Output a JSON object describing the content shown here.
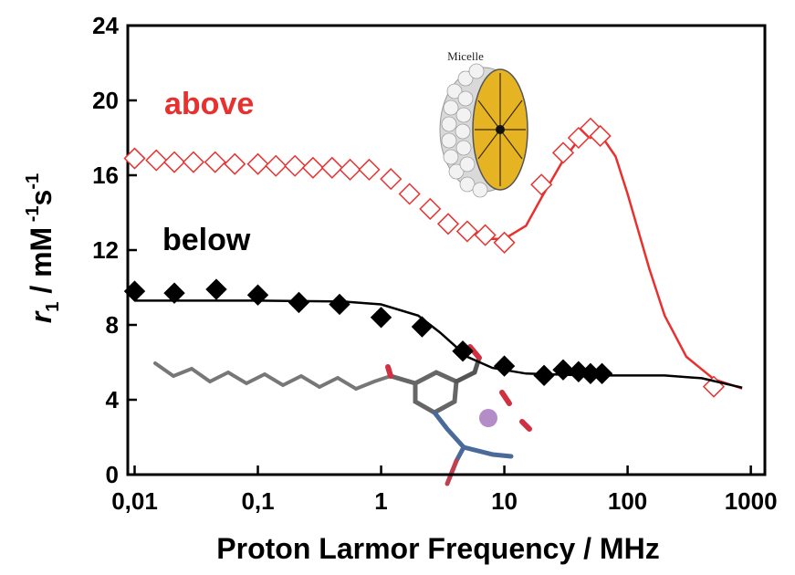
{
  "chart_data": {
    "type": "scatter",
    "xlabel": "Proton Larmor Frequency / MHz",
    "ylabel_parts": [
      "r",
      "1",
      " / mM",
      " -1",
      "s",
      "-1"
    ],
    "xscale": "log",
    "xlim": [
      0.0088,
      1300
    ],
    "ylim": [
      0,
      24
    ],
    "xticks": [
      {
        "value": 0.01,
        "label": "0,01"
      },
      {
        "value": 0.1,
        "label": "0,1"
      },
      1,
      10,
      100,
      1000
    ],
    "yticks": [
      0,
      4,
      8,
      12,
      16,
      20,
      24
    ],
    "annotations": [
      {
        "text": "Micelle"
      }
    ],
    "series": [
      {
        "name": "above",
        "color": "#e8312f",
        "marker": "open-diamond",
        "x": [
          0.01,
          0.015,
          0.021,
          0.03,
          0.045,
          0.065,
          0.1,
          0.14,
          0.2,
          0.28,
          0.4,
          0.56,
          0.8,
          1.2,
          1.7,
          2.5,
          3.5,
          5,
          7,
          10,
          20,
          30,
          40,
          50,
          60,
          500
        ],
        "values": [
          16.9,
          16.8,
          16.7,
          16.7,
          16.7,
          16.6,
          16.6,
          16.5,
          16.5,
          16.4,
          16.4,
          16.3,
          16.3,
          15.8,
          15.0,
          14.2,
          13.4,
          13.0,
          12.8,
          12.4,
          15.5,
          17.2,
          18.0,
          18.5,
          18.1,
          4.7
        ],
        "fit_x": [
          7,
          10,
          15,
          20,
          30,
          40,
          50,
          60,
          80,
          100,
          150,
          200,
          300,
          500,
          850
        ],
        "fit_values": [
          12.6,
          12.6,
          13.3,
          14.8,
          16.8,
          17.9,
          18.3,
          18.2,
          17.0,
          15.0,
          11.0,
          8.5,
          6.3,
          5.1,
          4.6
        ]
      },
      {
        "name": "below",
        "color": "#000000",
        "marker": "filled-diamond",
        "x": [
          0.01,
          0.021,
          0.046,
          0.1,
          0.215,
          0.46,
          1,
          2.15,
          4.6,
          10,
          21,
          30,
          40,
          50,
          62
        ],
        "values": [
          9.8,
          9.7,
          9.9,
          9.6,
          9.2,
          9.1,
          8.4,
          7.9,
          6.6,
          5.8,
          5.3,
          5.6,
          5.5,
          5.4,
          5.4
        ],
        "fit_x": [
          0.01,
          0.1,
          0.5,
          1,
          2,
          3,
          5,
          8,
          15,
          50,
          200,
          400,
          850
        ],
        "fit_values": [
          9.3,
          9.3,
          9.25,
          9.1,
          8.5,
          7.6,
          6.3,
          5.7,
          5.4,
          5.3,
          5.3,
          5.15,
          4.65
        ]
      }
    ]
  }
}
